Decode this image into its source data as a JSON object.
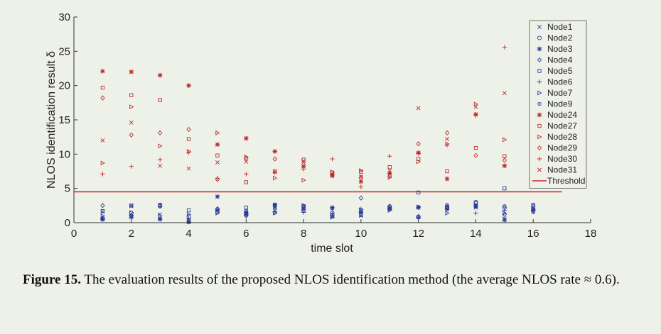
{
  "chart_data": {
    "type": "scatter",
    "xlabel": "time slot",
    "ylabel": "NLOS identification result δ",
    "xlim": [
      0,
      18
    ],
    "ylim": [
      0,
      30
    ],
    "xticks": [
      0,
      2,
      4,
      6,
      8,
      10,
      12,
      14,
      16,
      18
    ],
    "yticks": [
      0,
      5,
      10,
      15,
      20,
      25,
      30
    ],
    "legend_position": "top-right",
    "grid": false,
    "threshold": {
      "name": "Threshold",
      "value": 4.5,
      "x_range": [
        0,
        17
      ],
      "color": "#c0282d"
    },
    "series": [
      {
        "name": "Node1",
        "marker": "x",
        "color": "#2a3d9a",
        "x": [
          1,
          2,
          3,
          4,
          5,
          6,
          7,
          8,
          9,
          10,
          11,
          12,
          13,
          14,
          15,
          16
        ],
        "y": [
          1.6,
          2.4,
          1.2,
          0.4,
          1.8,
          1.4,
          2.2,
          2.0,
          0.9,
          1.0,
          2.1,
          0.8,
          2.4,
          2.2,
          0.6,
          2.1
        ]
      },
      {
        "name": "Node2",
        "marker": "o",
        "color": "#2a3d9a",
        "x": [
          1,
          2,
          3,
          4,
          5,
          6,
          7,
          8,
          9,
          10,
          11,
          12,
          13,
          14,
          15,
          16
        ],
        "y": [
          0.5,
          1.4,
          2.4,
          0.9,
          1.6,
          1.2,
          1.5,
          1.8,
          1.1,
          1.6,
          2.3,
          0.8,
          2.2,
          3.0,
          2.2,
          1.8
        ]
      },
      {
        "name": "Node3",
        "marker": "asterisk",
        "color": "#2a3d9a",
        "x": [
          1,
          2,
          3,
          4,
          5,
          6,
          7,
          8,
          9,
          10,
          11,
          12,
          13,
          14,
          15,
          16
        ],
        "y": [
          0.5,
          0.8,
          0.5,
          0.1,
          3.8,
          1.5,
          2.6,
          2.0,
          2.2,
          1.5,
          2.0,
          2.2,
          2.0,
          2.4,
          0.4,
          1.9
        ]
      },
      {
        "name": "Node4",
        "marker": "diamond",
        "color": "#2a3d9a",
        "x": [
          1,
          2,
          3,
          4,
          5,
          6,
          7,
          8,
          9,
          10,
          11,
          12,
          13,
          14,
          15,
          16
        ],
        "y": [
          2.5,
          1.0,
          2.5,
          0.4,
          2.0,
          1.0,
          2.4,
          2.4,
          1.5,
          3.6,
          2.4,
          0.9,
          2.2,
          2.9,
          1.2,
          2.4
        ]
      },
      {
        "name": "Node5",
        "marker": "square",
        "color": "#2a3d9a",
        "x": [
          1,
          2,
          3,
          4,
          5,
          6,
          7,
          8,
          9,
          10,
          11,
          12,
          13,
          14,
          15,
          16
        ],
        "y": [
          1.7,
          2.5,
          2.6,
          1.8,
          1.6,
          2.2,
          2.6,
          2.4,
          0.9,
          1.1,
          2.1,
          4.4,
          2.1,
          2.4,
          5.0,
          2.6
        ]
      },
      {
        "name": "Node6",
        "marker": "plus",
        "color": "#2a3d9a",
        "x": [
          1,
          2,
          3,
          4,
          5,
          6,
          7,
          8,
          9,
          10,
          11,
          12,
          13,
          14,
          15,
          16
        ],
        "y": [
          0.6,
          1.1,
          2.4,
          0.6,
          1.9,
          1.1,
          1.6,
          1.5,
          1.3,
          2.0,
          1.9,
          0.7,
          2.4,
          1.4,
          1.8,
          1.7
        ]
      },
      {
        "name": "Node7",
        "marker": "triangle",
        "color": "#2a3d9a",
        "x": [
          1,
          2,
          3,
          4,
          5,
          6,
          7,
          8,
          9,
          10,
          11,
          12,
          13,
          14,
          15,
          16
        ],
        "y": [
          1.0,
          1.5,
          1.0,
          1.2,
          1.4,
          1.4,
          1.4,
          2.5,
          0.8,
          1.9,
          1.8,
          2.3,
          1.4,
          2.6,
          1.4,
          2.1
        ]
      },
      {
        "name": "Node9",
        "marker": "dot",
        "color": "#2a3d9a",
        "x": [
          1,
          2,
          3,
          4,
          5,
          6,
          7,
          8,
          9,
          10,
          11,
          12,
          13,
          14,
          15,
          16
        ],
        "y": [
          0.7,
          2.5,
          0.6,
          0.1,
          2.0,
          1.7,
          2.1,
          2.3,
          2.1,
          1.3,
          2.4,
          2.3,
          2.6,
          2.5,
          2.4,
          1.5
        ]
      },
      {
        "name": "Node24",
        "marker": "asterisk",
        "color": "#c0282d",
        "x": [
          1,
          2,
          3,
          4,
          5,
          6,
          7,
          8,
          9,
          10,
          11,
          12,
          13,
          14,
          15
        ],
        "y": [
          22.1,
          22.0,
          21.5,
          20.0,
          11.4,
          12.3,
          10.4,
          8.2,
          7.0,
          6.0,
          7.2,
          10.2,
          6.4,
          15.8,
          8.3
        ]
      },
      {
        "name": "Node27",
        "marker": "square",
        "color": "#c0282d",
        "x": [
          1,
          2,
          3,
          4,
          5,
          6,
          7,
          8,
          9,
          10,
          11,
          12,
          13,
          14,
          15
        ],
        "y": [
          19.7,
          18.6,
          17.9,
          12.2,
          9.8,
          5.9,
          7.5,
          9.2,
          7.3,
          7.4,
          8.1,
          9.3,
          7.5,
          10.9,
          9.7
        ]
      },
      {
        "name": "Node28",
        "marker": "triangle",
        "color": "#c0282d",
        "x": [
          1,
          2,
          3,
          4,
          5,
          6,
          7,
          8,
          9,
          10,
          11,
          12,
          13,
          14,
          15
        ],
        "y": [
          8.7,
          16.9,
          11.2,
          10.4,
          13.1,
          9.6,
          6.5,
          6.2,
          7.4,
          7.6,
          6.6,
          8.9,
          11.5,
          17.3,
          12.1
        ]
      },
      {
        "name": "Node29",
        "marker": "diamond",
        "color": "#c0282d",
        "x": [
          1,
          2,
          3,
          4,
          5,
          6,
          7,
          8,
          9,
          10,
          11,
          12,
          13,
          14,
          15
        ],
        "y": [
          18.2,
          12.8,
          13.1,
          13.6,
          6.3,
          9.4,
          9.3,
          8.5,
          6.9,
          6.6,
          6.8,
          11.5,
          13.1,
          9.8,
          9.1
        ]
      },
      {
        "name": "Node30",
        "marker": "plus",
        "color": "#c0282d",
        "x": [
          1,
          2,
          3,
          4,
          5,
          6,
          7,
          8,
          9,
          10,
          11,
          12,
          13,
          14,
          15
        ],
        "y": [
          7.1,
          8.2,
          9.2,
          10.2,
          6.5,
          7.1,
          7.3,
          7.8,
          9.3,
          5.2,
          9.7,
          10.1,
          11.3,
          15.6,
          25.6
        ]
      },
      {
        "name": "Node31",
        "marker": "x",
        "color": "#c0282d",
        "x": [
          1,
          2,
          3,
          4,
          5,
          6,
          7,
          8,
          9,
          10,
          11,
          12,
          13,
          14,
          15
        ],
        "y": [
          12.0,
          14.6,
          8.3,
          7.9,
          8.8,
          8.9,
          7.4,
          9.0,
          6.8,
          6.7,
          7.6,
          16.7,
          12.2,
          16.9,
          18.9
        ]
      }
    ]
  },
  "caption": {
    "label": "Figure 15.",
    "text": " The evaluation results of the proposed NLOS identification method (the average NLOS rate ≈ 0.6)."
  }
}
